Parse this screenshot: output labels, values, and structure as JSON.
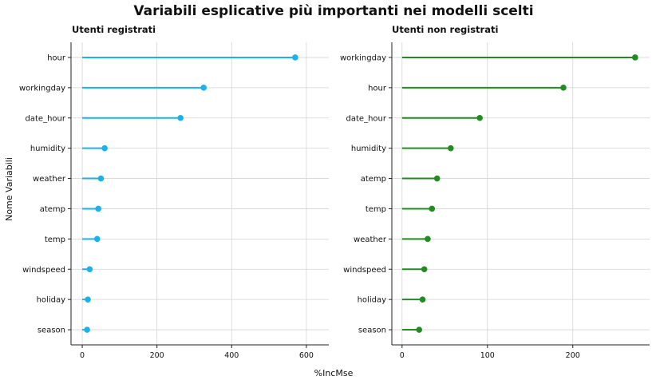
{
  "chart_data": {
    "type": "lollipop",
    "title": "Variabili esplicative più importanti nei modelli scelti",
    "xlabel": "%IncMse",
    "ylabel": "Nome Variabili",
    "grid": true,
    "panels": [
      {
        "name": "Utenti registrati",
        "color": "#1ab2ea",
        "xlim": [
          -30,
          660
        ],
        "xticks": [
          0,
          200,
          400,
          600
        ],
        "categories": [
          "hour",
          "workingday",
          "date_hour",
          "humidity",
          "weather",
          "atemp",
          "temp",
          "windspeed",
          "holiday",
          "season"
        ],
        "values": [
          570,
          325,
          263,
          60,
          50,
          43,
          40,
          20,
          15,
          13
        ]
      },
      {
        "name": "Utenti non registrati",
        "color": "#228b22",
        "xlim": [
          -12,
          290
        ],
        "xticks": [
          0,
          100,
          200
        ],
        "categories": [
          "workingday",
          "hour",
          "date_hour",
          "humidity",
          "atemp",
          "temp",
          "weather",
          "windspeed",
          "holiday",
          "season"
        ],
        "values": [
          273,
          189,
          91,
          57,
          41,
          35,
          30,
          26,
          24,
          20
        ]
      }
    ]
  }
}
